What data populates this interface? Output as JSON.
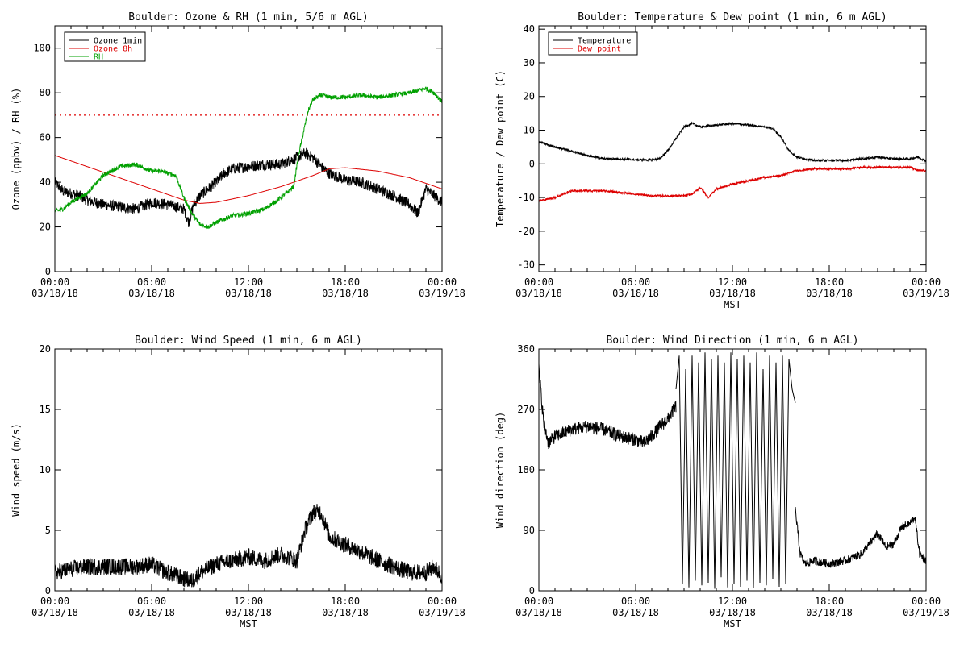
{
  "colors": {
    "black": "#000000",
    "red": "#dd0000",
    "green": "#00a000"
  },
  "time_ticks": {
    "times": [
      "00:00",
      "06:00",
      "12:00",
      "18:00",
      "00:00"
    ],
    "dates": [
      "03/18/18",
      "03/18/18",
      "03/18/18",
      "03/18/18",
      "03/19/18"
    ],
    "x_hours": [
      0,
      6,
      12,
      18,
      24
    ]
  },
  "chart_data": [
    {
      "id": "ozone_rh",
      "type": "line",
      "title": "Boulder: Ozone & RH (1 min, 5/6 m AGL)",
      "ylabel": "Ozone (ppbv) / RH (%)",
      "xlabel": "",
      "xlim": [
        0,
        24
      ],
      "ylim": [
        0,
        110
      ],
      "yticks": [
        0,
        20,
        40,
        60,
        80,
        100
      ],
      "legend_position": "top-left",
      "hline": {
        "y": 70,
        "color": "#dd0000",
        "style": "dotted"
      },
      "series": [
        {
          "name": "Ozone 1min",
          "color": "#000000",
          "noise": 2.5,
          "x": [
            0,
            0.5,
            1,
            1.5,
            2,
            3,
            4,
            5,
            6,
            7,
            7.5,
            8,
            8.3,
            8.6,
            9,
            9.5,
            10,
            10.5,
            11,
            12,
            13,
            14,
            15,
            15.5,
            16,
            16.5,
            17,
            18,
            19,
            20,
            21,
            22,
            22.5,
            23,
            23.5,
            24
          ],
          "y": [
            40,
            36,
            35,
            34,
            32,
            30,
            29,
            28,
            31,
            30,
            29,
            28,
            22,
            30,
            34,
            37,
            40,
            44,
            46,
            47,
            48,
            48,
            51,
            53,
            51,
            47,
            44,
            41,
            40,
            37,
            34,
            30,
            26,
            37,
            34,
            31
          ]
        },
        {
          "name": "Ozone 8h",
          "color": "#dd0000",
          "noise": 0,
          "x": [
            0,
            2,
            4,
            6,
            8,
            9,
            10,
            12,
            14,
            16,
            17,
            18,
            20,
            22,
            24
          ],
          "y": [
            52,
            47,
            42,
            37,
            32,
            30.5,
            31,
            34,
            38,
            43,
            46,
            46.5,
            45,
            42,
            37
          ]
        },
        {
          "name": "RH",
          "color": "#00a000",
          "noise": 1,
          "x": [
            0,
            0.5,
            1,
            2,
            3,
            4,
            5,
            6,
            6.5,
            7.5,
            8,
            8.5,
            9,
            9.5,
            10,
            11,
            12,
            13,
            14,
            14.8,
            15.1,
            15.4,
            15.7,
            16,
            16.5,
            17,
            18,
            19,
            20,
            21,
            22,
            23,
            23.5,
            24
          ],
          "y": [
            27,
            28,
            31,
            35,
            43,
            47,
            48,
            45,
            45,
            43,
            33,
            26,
            21,
            20,
            22,
            25,
            26,
            28,
            33,
            38,
            52,
            62,
            72,
            77,
            79,
            78,
            78,
            79,
            78,
            79,
            80,
            82,
            80,
            76
          ]
        }
      ]
    },
    {
      "id": "temp_dew",
      "type": "line",
      "title": "Boulder: Temperature & Dew point (1 min, 6 m AGL)",
      "ylabel": "Temperature / Dew point (C)",
      "xlabel": "MST",
      "xlim": [
        0,
        24
      ],
      "ylim": [
        -32,
        41
      ],
      "yticks": [
        -30,
        -20,
        -10,
        0,
        10,
        20,
        30,
        40
      ],
      "legend_position": "top-left",
      "series": [
        {
          "name": "Temperature",
          "color": "#000000",
          "noise": 0.3,
          "x": [
            0,
            1,
            2,
            3,
            4,
            5,
            6,
            7,
            7.5,
            8,
            8.5,
            9,
            9.5,
            10,
            11,
            12,
            13,
            14,
            14.5,
            15,
            15.5,
            16,
            17,
            18,
            19,
            20,
            21,
            22,
            23,
            23.5,
            24
          ],
          "y": [
            6.5,
            5,
            3.8,
            2.5,
            1.5,
            1.5,
            1.2,
            1.2,
            1.5,
            4,
            7.5,
            11,
            12,
            11,
            11.5,
            12,
            11.5,
            11,
            10.5,
            8,
            4,
            2,
            1,
            1,
            1,
            1.5,
            2,
            1.5,
            1.5,
            2,
            0.8
          ]
        },
        {
          "name": "Dew point",
          "color": "#dd0000",
          "noise": 0.3,
          "x": [
            0,
            1,
            1.5,
            2,
            3,
            4,
            5,
            6,
            7,
            8,
            9,
            9.5,
            10,
            10.5,
            11,
            12,
            13,
            14,
            15,
            16,
            17,
            18,
            19,
            20,
            21,
            22,
            23,
            23.5,
            24
          ],
          "y": [
            -11,
            -10,
            -9,
            -8,
            -8,
            -8,
            -8.5,
            -9,
            -9.5,
            -9.5,
            -9.5,
            -9,
            -7,
            -10,
            -7.5,
            -6,
            -5,
            -4,
            -3.5,
            -2,
            -1.5,
            -1.5,
            -1.5,
            -1,
            -1,
            -1,
            -1,
            -2,
            -2
          ]
        }
      ]
    },
    {
      "id": "wind_speed",
      "type": "line",
      "title": "Boulder: Wind Speed (1 min, 6 m AGL)",
      "ylabel": "Wind speed (m/s)",
      "xlabel": "MST",
      "xlim": [
        0,
        24
      ],
      "ylim": [
        0,
        20
      ],
      "yticks": [
        0,
        5,
        10,
        15,
        20
      ],
      "series": [
        {
          "color": "#000000",
          "noise": 0.7,
          "x": [
            0,
            1,
            2,
            3,
            4,
            5,
            6,
            6.5,
            7,
            8,
            8.5,
            9,
            10,
            11,
            12,
            13,
            14,
            15,
            15.5,
            16,
            16.5,
            17,
            18,
            19,
            20,
            21,
            22,
            23,
            23.5,
            24
          ],
          "y": [
            1.5,
            1.8,
            2,
            2,
            2,
            2,
            2.2,
            1.8,
            1.5,
            1,
            0.8,
            1.5,
            2.2,
            2.5,
            2.8,
            2.5,
            3,
            2.5,
            5,
            6.5,
            6.5,
            4.5,
            3.8,
            3.2,
            2.5,
            2,
            1.5,
            1.5,
            2,
            1.2
          ]
        }
      ]
    },
    {
      "id": "wind_dir",
      "type": "line",
      "title": "Boulder: Wind Direction (1 min, 6 m AGL)",
      "ylabel": "Wind direction (deg)",
      "xlabel": "MST",
      "xlim": [
        0,
        24
      ],
      "ylim": [
        0,
        360
      ],
      "yticks": [
        0,
        90,
        180,
        270,
        360
      ],
      "series": [
        {
          "color": "#000000",
          "noise": 10,
          "x": [
            0,
            0.3,
            0.6,
            1,
            2,
            3,
            4,
            5,
            6,
            6.5,
            7,
            7.5,
            8,
            8.5
          ],
          "y": [
            330,
            250,
            220,
            230,
            240,
            245,
            240,
            230,
            225,
            220,
            230,
            245,
            255,
            275
          ]
        },
        {
          "color": "#000000",
          "noise": 0,
          "wrap": true,
          "x": [
            8.5,
            8.7,
            8.9,
            9.1,
            9.3,
            9.5,
            9.7,
            9.9,
            10.1,
            10.3,
            10.5,
            10.7,
            10.9,
            11.1,
            11.3,
            11.5,
            11.7,
            11.9,
            12.1,
            12.3,
            12.5,
            12.7,
            12.9,
            13.1,
            13.3,
            13.5,
            13.7,
            13.9,
            14.1,
            14.3,
            14.5,
            14.7,
            14.9,
            15.1,
            15.3,
            15.5,
            15.7,
            15.9
          ],
          "y": [
            300,
            350,
            10,
            330,
            5,
            350,
            15,
            340,
            8,
            355,
            12,
            345,
            3,
            350,
            20,
            340,
            5,
            355,
            10,
            345,
            6,
            350,
            15,
            340,
            4,
            355,
            12,
            330,
            8,
            350,
            18,
            340,
            6,
            350,
            10,
            345,
            300,
            280
          ]
        },
        {
          "color": "#000000",
          "noise": 6,
          "x": [
            15.9,
            16.2,
            16.5,
            17,
            18,
            19,
            20,
            20.5,
            21,
            21.5,
            22,
            22.5,
            23,
            23.3,
            23.6,
            24
          ],
          "y": [
            120,
            55,
            40,
            45,
            40,
            45,
            55,
            70,
            85,
            65,
            70,
            95,
            100,
            110,
            55,
            45
          ]
        }
      ]
    }
  ]
}
